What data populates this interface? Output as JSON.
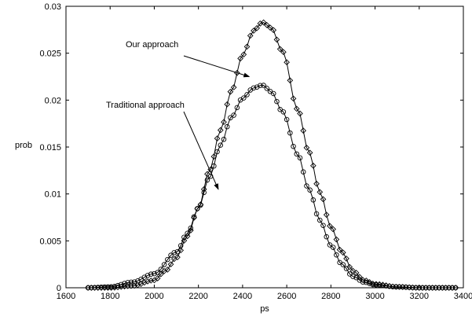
{
  "chart_data": {
    "type": "line",
    "xlabel": "ps",
    "ylabel": "prob",
    "xlim": [
      1600,
      3400
    ],
    "ylim": [
      0,
      0.03
    ],
    "grid": false,
    "xticks": [
      1600,
      1800,
      2000,
      2200,
      2400,
      2600,
      2800,
      3000,
      3200,
      3400
    ],
    "xtick_labels": [
      "1600",
      "1800",
      "2000",
      "2200",
      "2400",
      "2600",
      "2800",
      "3000",
      "3200",
      "3400"
    ],
    "yticks": [
      0,
      0.005,
      0.01,
      0.015,
      0.02,
      0.025,
      0.03
    ],
    "ytick_labels": [
      "0",
      "0.005",
      "0.01",
      "0.015",
      "0.02",
      "0.025",
      "0.03"
    ],
    "series": [
      {
        "name": "Our approach",
        "marker": "diamond",
        "x": [
          1700,
          1800,
          1900,
          2000,
          2050,
          2100,
          2150,
          2200,
          2250,
          2300,
          2350,
          2400,
          2450,
          2490,
          2530,
          2580,
          2650,
          2700,
          2750,
          2800,
          2850,
          2900,
          2950,
          3000,
          3100,
          3200,
          3300,
          3370
        ],
        "y": [
          0,
          0,
          0.0002,
          0.0008,
          0.0018,
          0.0032,
          0.0055,
          0.0085,
          0.0125,
          0.0168,
          0.021,
          0.0248,
          0.0274,
          0.0283,
          0.0277,
          0.0252,
          0.019,
          0.0145,
          0.0102,
          0.0065,
          0.0038,
          0.0018,
          0.0008,
          0.0004,
          0.0001,
          0,
          0,
          0
        ]
      },
      {
        "name": "Traditional approach",
        "marker": "circle",
        "x": [
          1700,
          1800,
          1900,
          2000,
          2100,
          2150,
          2200,
          2250,
          2300,
          2350,
          2400,
          2450,
          2490,
          2530,
          2580,
          2650,
          2700,
          2750,
          2800,
          2850,
          2900,
          2950,
          3000,
          3100,
          3200,
          3300,
          3370
        ],
        "y": [
          0,
          0.0001,
          0.0006,
          0.0015,
          0.0038,
          0.0058,
          0.0085,
          0.0118,
          0.0152,
          0.0182,
          0.0202,
          0.0213,
          0.0216,
          0.0209,
          0.0188,
          0.0142,
          0.0105,
          0.0072,
          0.0045,
          0.0025,
          0.0012,
          0.0006,
          0.0003,
          0.0001,
          0,
          0,
          0
        ]
      }
    ],
    "annotations": [
      {
        "text": "Our approach",
        "target_x": 2430,
        "target_y": 0.0225
      },
      {
        "text": "Traditional approach",
        "target_x": 2290,
        "target_y": 0.0105
      }
    ]
  }
}
